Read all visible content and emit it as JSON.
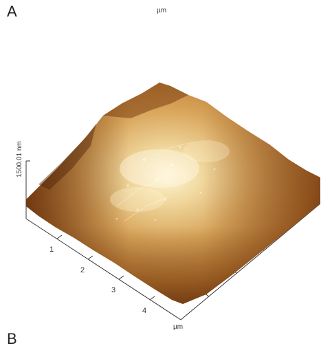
{
  "panel_labels": {
    "top": "A",
    "bottom": "B"
  },
  "units": {
    "top_axis": "µm",
    "bottom_axis": "µm"
  },
  "z_axis_label": "1500.01 nm",
  "x_ticks": [
    "1",
    "2",
    "3",
    "4"
  ]
}
